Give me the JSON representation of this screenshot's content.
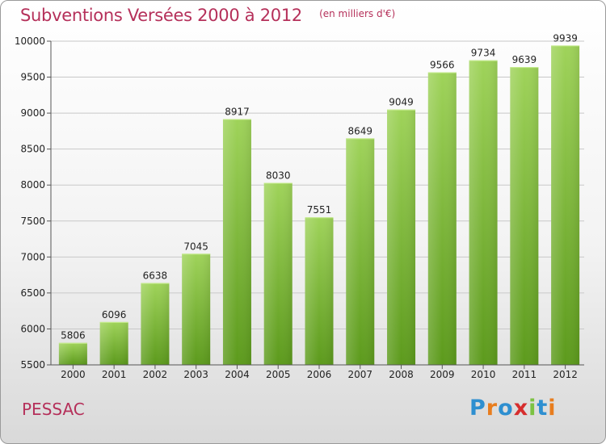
{
  "header": {
    "title": "Subventions Versées 2000 à 2012",
    "subtitle": "(en milliers d'€)"
  },
  "footer": {
    "commune": "PESSAC",
    "logo_text": "Proxiti",
    "logo_colors": [
      "#2e8fd0",
      "#e87d1e",
      "#2e8fd0",
      "#d62d2d",
      "#7cc242",
      "#2e8fd0",
      "#e87d1e"
    ]
  },
  "colors": {
    "bar_top": "#9fd35a",
    "bar_bottom": "#5c9a1c",
    "accent": "#b5305a"
  },
  "chart_data": {
    "type": "bar",
    "categories": [
      "2000",
      "2001",
      "2002",
      "2003",
      "2004",
      "2005",
      "2006",
      "2007",
      "2008",
      "2009",
      "2010",
      "2011",
      "2012"
    ],
    "values": [
      5806,
      6096,
      6638,
      7045,
      8917,
      8030,
      7551,
      8649,
      9049,
      9566,
      9734,
      9639,
      9939
    ],
    "title": "Subventions Versées 2000 à 2012",
    "subtitle": "(en milliers d'€)",
    "ylim": [
      5500,
      10000
    ],
    "yticks": [
      5500,
      6000,
      6500,
      7000,
      7500,
      8000,
      8500,
      9000,
      9500,
      10000
    ],
    "grid": true
  }
}
